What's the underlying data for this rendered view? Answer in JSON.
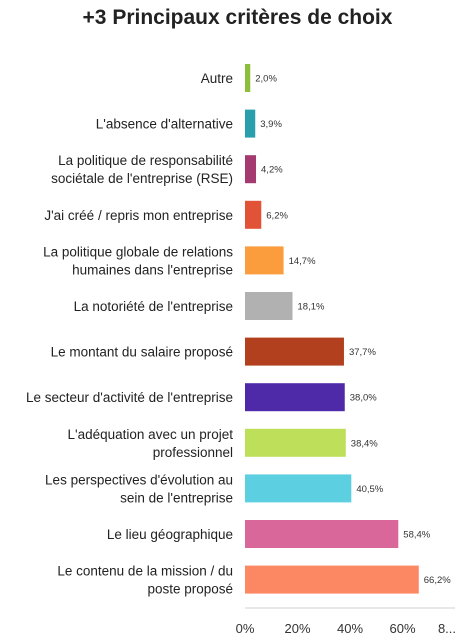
{
  "chart_data": {
    "type": "bar",
    "orientation": "horizontal",
    "title": "+3 Principaux critères de choix",
    "categories": [
      "Autre",
      "L'absence d'alternative",
      "La politique de responsabilité sociétale de l'entreprise (RSE)",
      "J'ai créé / repris mon entreprise",
      "La politique globale de relations humaines dans l'entreprise",
      "La notoriété de l'entreprise",
      "Le montant du salaire proposé",
      "Le secteur d'activité de l'entreprise",
      "L'adéquation avec un projet professionnel",
      "Les perspectives d'évolution au sein de l'entreprise",
      "Le lieu géographique",
      "Le contenu de la mission / du poste proposé"
    ],
    "category_lines": [
      [
        "Autre"
      ],
      [
        "L'absence d'alternative"
      ],
      [
        "La politique de responsabilité",
        "sociétale de l'entreprise (RSE)"
      ],
      [
        "J'ai créé / repris mon entreprise"
      ],
      [
        "La politique globale de relations",
        "humaines dans l'entreprise"
      ],
      [
        "La notoriété de l'entreprise"
      ],
      [
        "Le montant du salaire proposé"
      ],
      [
        "Le secteur d'activité de l'entreprise"
      ],
      [
        "L'adéquation avec un projet",
        "professionnel"
      ],
      [
        "Les perspectives d'évolution au",
        "sein de l'entreprise"
      ],
      [
        "Le lieu géographique"
      ],
      [
        "Le contenu de la mission / du",
        "poste proposé"
      ]
    ],
    "values": [
      2.0,
      3.9,
      4.2,
      6.2,
      14.7,
      18.1,
      37.7,
      38.0,
      38.4,
      40.5,
      58.4,
      66.2
    ],
    "value_labels": [
      "2,0%",
      "3,9%",
      "4,2%",
      "6,2%",
      "14,7%",
      "18,1%",
      "37,7%",
      "38,0%",
      "38,4%",
      "40,5%",
      "58,4%",
      "66,2%"
    ],
    "colors": [
      "#8cbe3b",
      "#2a9fac",
      "#a43a6f",
      "#e25237",
      "#fb9d3d",
      "#b1b1b1",
      "#b2401f",
      "#4e2aa8",
      "#bedf5a",
      "#5ccfe0",
      "#d96799",
      "#fc8763"
    ],
    "xlim": [
      0,
      80
    ],
    "x_ticks": [
      "0%",
      "20%",
      "40%",
      "60%",
      "8..."
    ],
    "x_tick_values": [
      0,
      20,
      40,
      60,
      80
    ],
    "grid": false,
    "legend": "none"
  }
}
